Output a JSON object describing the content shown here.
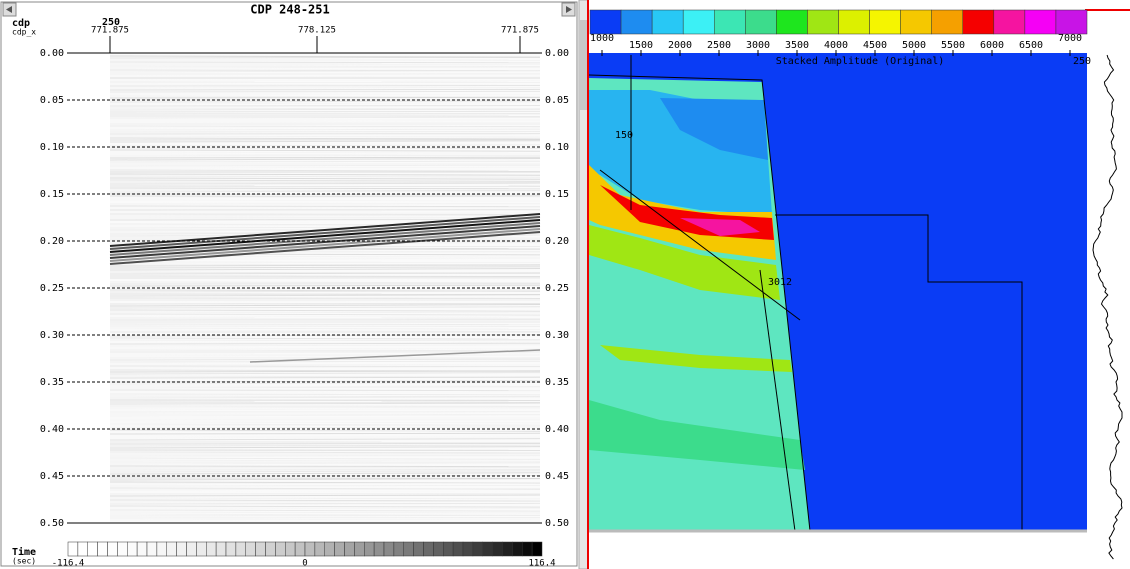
{
  "left_panel": {
    "title": "CDP 248-251",
    "cdp_label": "cdp",
    "cdp_value": "250",
    "cdp_x_label": "cdp_x",
    "cdp_x_ticks": [
      "771.875",
      "778.125",
      "771.875"
    ],
    "time_ticks": [
      "0.00",
      "0.05",
      "0.10",
      "0.15",
      "0.20",
      "0.25",
      "0.30",
      "0.35",
      "0.40",
      "0.45",
      "0.50"
    ],
    "time_label": "Time",
    "time_unit": "(sec)",
    "amplitude_scale": [
      "-116.4",
      "0",
      "116.4"
    ]
  },
  "right_panel": {
    "velocity_colors": [
      "#0a3cf5",
      "#1e8cf0",
      "#28c8f5",
      "#3cf0f5",
      "#3ce6b4",
      "#3cdc8c",
      "#1ee61e",
      "#a0e614",
      "#dcf000",
      "#f5f500",
      "#f5c800",
      "#f5a000",
      "#f50000",
      "#f514a0",
      "#f500f5",
      "#c814e6"
    ],
    "velocity_scale": [
      "1000",
      "1500",
      "2000",
      "2500",
      "3000",
      "3500",
      "4000",
      "4500",
      "5000",
      "5500",
      "6000",
      "6500",
      "7000"
    ],
    "section_title": "Stacked Amplitude (Original)",
    "trace_label": "250",
    "contour_labels": [
      "150",
      "3012"
    ]
  }
}
